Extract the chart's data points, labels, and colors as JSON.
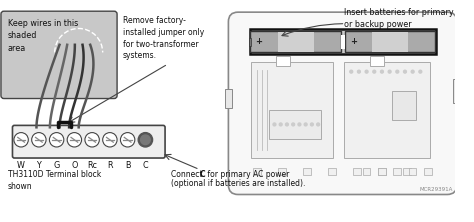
{
  "bg_color": "#ffffff",
  "gray_shade": "#c8c8c8",
  "dark_gray": "#444444",
  "light_gray": "#bbbbbb",
  "mid_gray": "#888888",
  "text_color": "#111111",
  "label_keep_wires": "Keep wires in this\nshaded\narea",
  "label_remove": "Remove factory-\ninstalled jumper only\nfor two-transformer\nsystems.",
  "label_insert_batteries": "Insert batteries for primary\nor backup power",
  "label_terminal": "TH3110D Terminal block\nshown",
  "label_mcr": "MCR29391A",
  "terminals": [
    "W",
    "Y",
    "G",
    "O",
    "Rc",
    "R",
    "B",
    "C"
  ],
  "plus_sign": "+",
  "battery_dark": "#909090",
  "battery_light": "#d8d8d8",
  "battery_border": "#222222",
  "therm_bg": "#f0f0f0",
  "therm_border": "#555555",
  "wire_colors": [
    "#555555",
    "#666666",
    "#444444",
    "#333333",
    "#555555"
  ]
}
